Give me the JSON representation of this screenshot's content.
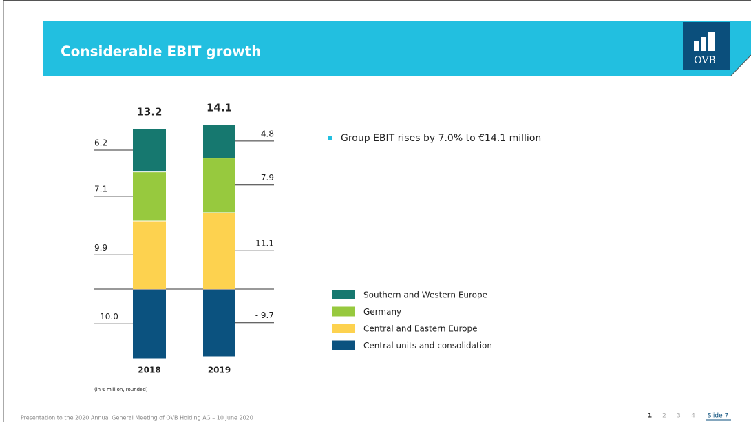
{
  "header": {
    "title": "Considerable EBIT growth",
    "logo": "OVB"
  },
  "chart_data": {
    "type": "stacked_bar",
    "categories": [
      "2018",
      "2019"
    ],
    "series": [
      {
        "name": "Southern and Western Europe",
        "color": "#16786f",
        "values": [
          6.2,
          4.8
        ]
      },
      {
        "name": "Germany",
        "color": "#97c93e",
        "values": [
          7.1,
          7.9
        ]
      },
      {
        "name": "Central and Eastern Europe",
        "color": "#fdd24f",
        "values": [
          9.9,
          11.1
        ]
      },
      {
        "name": "Central units and consolidation",
        "color": "#0b527f",
        "values": [
          -10.0,
          -9.7
        ],
        "value_labels": [
          "- 10.0",
          "- 9.7"
        ]
      }
    ],
    "totals": [
      13.2,
      14.1
    ],
    "note": "(in € million, rounded)"
  },
  "bullets": [
    "Group EBIT rises by 7.0% to €14.1 million"
  ],
  "footer": {
    "text": "Presentation to the 2020 Annual General Meeting of OVB Holding AG – 10 June 2020",
    "pages": [
      "1",
      "2",
      "3",
      "4"
    ],
    "slide": "Slide 7"
  }
}
